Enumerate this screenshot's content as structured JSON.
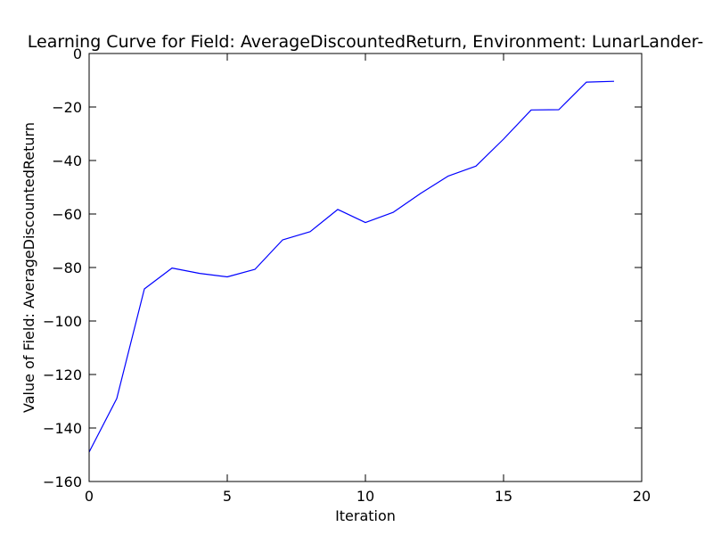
{
  "chart_data": {
    "type": "line",
    "title": "Learning Curve for Field: AverageDiscountedReturn, Environment: LunarLander-",
    "xlabel": "Iteration",
    "ylabel": "Value of Field: AverageDiscountedReturn",
    "xlim": [
      0,
      20
    ],
    "ylim": [
      -160,
      0
    ],
    "x_ticks": [
      0,
      5,
      10,
      15,
      20
    ],
    "y_ticks": [
      0,
      -20,
      -40,
      -60,
      -80,
      -100,
      -120,
      -140,
      -160
    ],
    "x_tick_labels": [
      "0",
      "5",
      "10",
      "15",
      "20"
    ],
    "y_tick_labels": [
      "0",
      "−20",
      "−40",
      "−60",
      "−80",
      "−100",
      "−120",
      "−140",
      "−160"
    ],
    "grid": false,
    "series": [
      {
        "color": "#0000ff",
        "x": [
          0,
          1,
          2,
          3,
          4,
          5,
          6,
          7,
          8,
          9,
          10,
          11,
          12,
          13,
          14,
          15,
          16,
          17,
          18,
          19
        ],
        "y": [
          -149.0,
          -129.0,
          -88.0,
          -80.2,
          -82.2,
          -83.5,
          -80.7,
          -69.7,
          -66.6,
          -58.3,
          -63.2,
          -59.4,
          -52.3,
          -45.8,
          -42.1,
          -32.0,
          -21.1,
          -21.0,
          -10.7,
          -10.4
        ]
      }
    ]
  }
}
